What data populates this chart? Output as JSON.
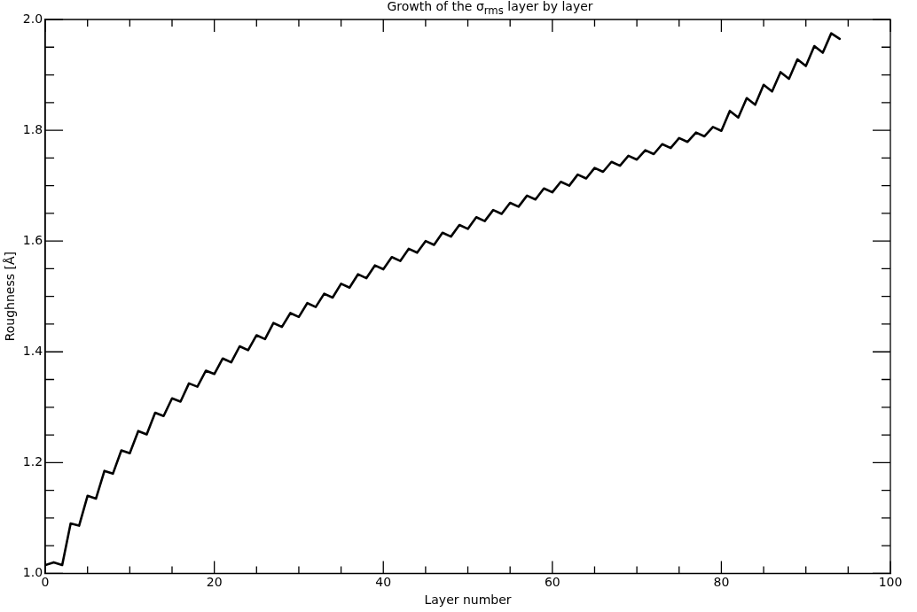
{
  "chart_data": {
    "type": "line",
    "title": "Growth of the σ$_{rms}$ layer by layer",
    "xlabel": "Layer number",
    "ylabel": "Roughness [Å]",
    "x": [
      0,
      1,
      2,
      3,
      4,
      5,
      6,
      7,
      8,
      9,
      10,
      11,
      12,
      13,
      14,
      15,
      16,
      17,
      18,
      19,
      20,
      21,
      22,
      23,
      24,
      25,
      26,
      27,
      28,
      29,
      30,
      31,
      32,
      33,
      34,
      35,
      36,
      37,
      38,
      39,
      40,
      41,
      42,
      43,
      44,
      45,
      46,
      47,
      48,
      49,
      50,
      51,
      52,
      53,
      54,
      55,
      56,
      57,
      58,
      59,
      60,
      61,
      62,
      63,
      64,
      65,
      66,
      67,
      68,
      69,
      70,
      71,
      72,
      73,
      74,
      75,
      76,
      77,
      78,
      79,
      80,
      81,
      82,
      83,
      84,
      85,
      86,
      87,
      88,
      89,
      90,
      91,
      92,
      93,
      94
    ],
    "series": [
      {
        "color": "#000000",
        "values": [
          1.015,
          1.02,
          1.015,
          1.09,
          1.086,
          1.14,
          1.135,
          1.185,
          1.18,
          1.222,
          1.217,
          1.257,
          1.251,
          1.29,
          1.284,
          1.316,
          1.31,
          1.343,
          1.337,
          1.366,
          1.36,
          1.388,
          1.381,
          1.41,
          1.403,
          1.43,
          1.423,
          1.452,
          1.445,
          1.47,
          1.463,
          1.488,
          1.481,
          1.505,
          1.498,
          1.523,
          1.516,
          1.54,
          1.533,
          1.556,
          1.549,
          1.571,
          1.564,
          1.586,
          1.579,
          1.6,
          1.593,
          1.615,
          1.608,
          1.629,
          1.622,
          1.643,
          1.636,
          1.656,
          1.649,
          1.669,
          1.662,
          1.682,
          1.675,
          1.695,
          1.688,
          1.707,
          1.7,
          1.72,
          1.713,
          1.732,
          1.725,
          1.743,
          1.736,
          1.754,
          1.747,
          1.764,
          1.757,
          1.775,
          1.768,
          1.786,
          1.779,
          1.796,
          1.789,
          1.806,
          1.799,
          1.835,
          1.823,
          1.858,
          1.846,
          1.882,
          1.87,
          1.905,
          1.893,
          1.928,
          1.916,
          1.952,
          1.94,
          1.975,
          1.965
        ]
      }
    ],
    "xlim": [
      0,
      100
    ],
    "xticks": [
      0,
      {
        "value": 5,
        "label": null
      },
      {
        "value": 10,
        "label": null
      },
      {
        "value": 15,
        "label": null
      },
      20,
      {
        "value": 25,
        "label": null
      },
      {
        "value": 30,
        "label": null
      },
      {
        "value": 35,
        "label": null
      },
      40,
      {
        "value": 45,
        "label": null
      },
      {
        "value": 50,
        "label": null
      },
      {
        "value": 55,
        "label": null
      },
      60,
      {
        "value": 65,
        "label": null
      },
      {
        "value": 70,
        "label": null
      },
      {
        "value": 75,
        "label": null
      },
      80,
      {
        "value": 85,
        "label": null
      },
      {
        "value": 90,
        "label": null
      },
      {
        "value": 95,
        "label": null
      },
      100
    ],
    "ylim": [
      1.0,
      2.0
    ],
    "yticks": [
      {
        "value": 1.0,
        "label": "1.0"
      },
      {
        "value": 1.05,
        "label": null
      },
      {
        "value": 1.1,
        "label": null
      },
      {
        "value": 1.15,
        "label": null
      },
      {
        "value": 1.2,
        "label": "1.2"
      },
      {
        "value": 1.25,
        "label": null
      },
      {
        "value": 1.3,
        "label": null
      },
      {
        "value": 1.35,
        "label": null
      },
      {
        "value": 1.4,
        "label": "1.4"
      },
      {
        "value": 1.45,
        "label": null
      },
      {
        "value": 1.5,
        "label": null
      },
      {
        "value": 1.55,
        "label": null
      },
      {
        "value": 1.6,
        "label": "1.6"
      },
      {
        "value": 1.65,
        "label": null
      },
      {
        "value": 1.7,
        "label": null
      },
      {
        "value": 1.75,
        "label": null
      },
      {
        "value": 1.8,
        "label": "1.8"
      },
      {
        "value": 1.85,
        "label": null
      },
      {
        "value": 1.9,
        "label": null
      },
      {
        "value": 1.95,
        "label": null
      },
      {
        "value": 2.0,
        "label": "2.0"
      }
    ],
    "grid": false,
    "legend": false,
    "marker": "none",
    "line_style": "solid"
  }
}
